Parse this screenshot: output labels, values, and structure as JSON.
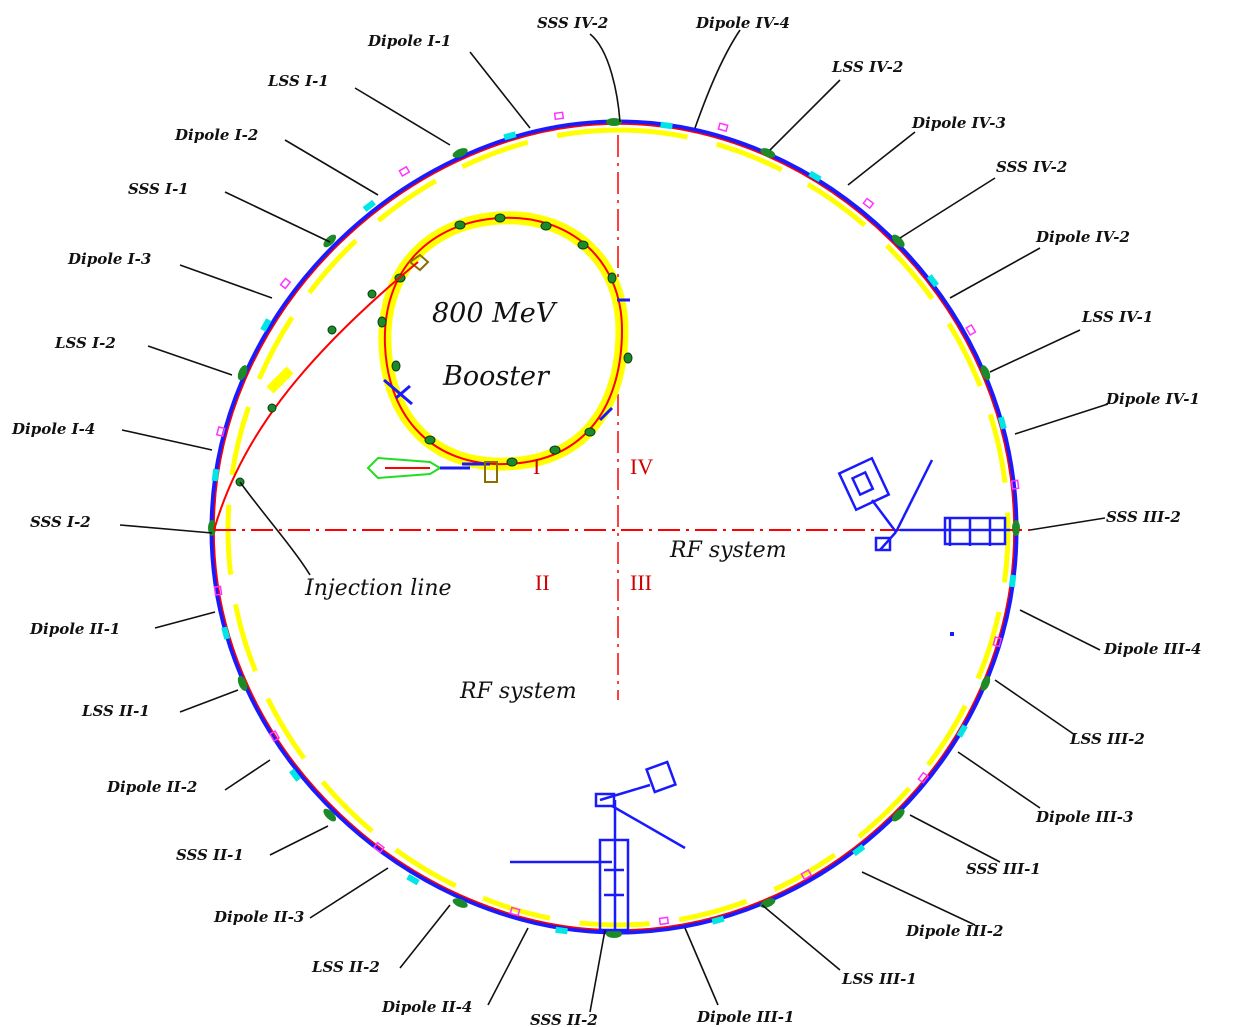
{
  "booster": {
    "line1": "800 MeV",
    "line2": "Booster"
  },
  "rf_system_right": "RF system",
  "rf_system_bottom": "RF system",
  "injection_line": "Injection line",
  "quadrants": [
    "I",
    "II",
    "III",
    "IV"
  ],
  "labels": {
    "sss_iv_2_top": "SSS IV-2",
    "dipole_iv_4": "Dipole IV-4",
    "dipole_i_1": "Dipole I-1",
    "lss_i_1": "LSS I-1",
    "lss_iv_2": "LSS IV-2",
    "dipole_iv_3": "Dipole IV-3",
    "dipole_i_2": "Dipole I-2",
    "sss_i_1": "SSS I-1",
    "sss_iv_2_right": "SSS IV-2",
    "dipole_iv_2": "Dipole IV-2",
    "dipole_i_3": "Dipole I-3",
    "lss_iv_1": "LSS IV-1",
    "lss_i_2": "LSS I-2",
    "dipole_iv_1": "Dipole IV-1",
    "dipole_i_4": "Dipole I-4",
    "sss_i_2": "SSS I-2",
    "sss_iii_2": "SSS III-2",
    "dipole_ii_1": "Dipole II-1",
    "dipole_iii_4": "Dipole III-4",
    "lss_ii_1": "LSS II-1",
    "lss_iii_2": "LSS III-2",
    "dipole_ii_2": "Dipole II-2",
    "dipole_iii_3": "Dipole III-3",
    "sss_ii_1": "SSS II-1",
    "sss_iii_1": "SSS III-1",
    "dipole_ii_3": "Dipole II-3",
    "dipole_iii_2": "Dipole III-2",
    "lss_ii_2": "LSS II-2",
    "lss_iii_1": "LSS III-1",
    "dipole_ii_4": "Dipole II-4",
    "sss_ii_2": "SSS II-2",
    "dipole_iii_1": "Dipole III-1"
  },
  "colors": {
    "ring": "#1a1aff",
    "beam": "#ff0000",
    "outline": "#ffff00",
    "magnet": "#1d8a2a",
    "quad_magnet": "#00e5e5",
    "component": "#ff33ff",
    "quadrant_label": "#d00000",
    "injection_chain": "#22dd22"
  }
}
